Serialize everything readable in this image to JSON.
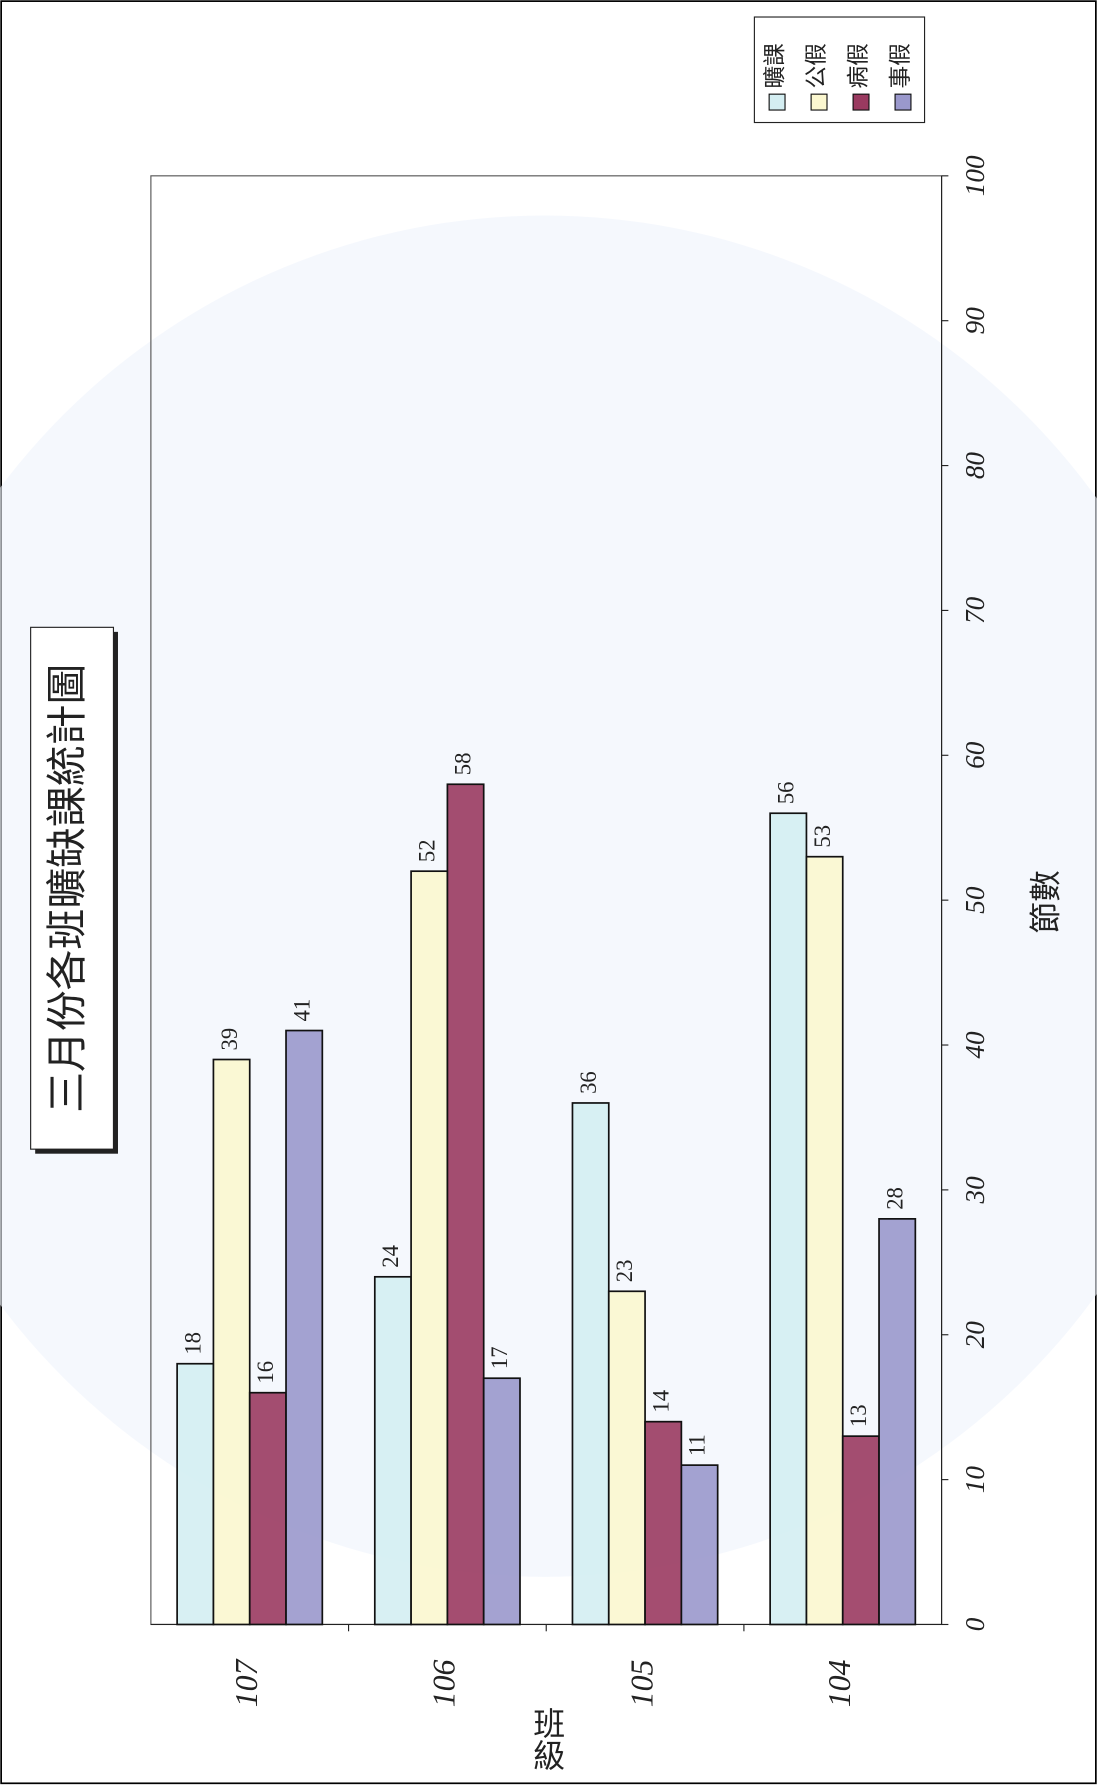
{
  "chart_data": {
    "type": "bar",
    "title": "三月份各班曠缺課統計圖",
    "x_label": "班級",
    "y_label": "節數",
    "categories": [
      "107",
      "106",
      "105",
      "104"
    ],
    "series": [
      {
        "name": "曠課",
        "color": "#d4eef2",
        "values": [
          18,
          24,
          36,
          56
        ]
      },
      {
        "name": "公假",
        "color": "#fbf7cf",
        "values": [
          39,
          52,
          23,
          53
        ]
      },
      {
        "name": "病假",
        "color": "#9a3a60",
        "values": [
          16,
          58,
          14,
          13
        ]
      },
      {
        "name": "事假",
        "color": "#9a98cc",
        "values": [
          41,
          17,
          11,
          28
        ]
      }
    ],
    "ylim": [
      0,
      100
    ],
    "yticks": [
      0,
      10,
      20,
      30,
      40,
      50,
      60,
      70,
      80,
      90,
      100
    ]
  }
}
